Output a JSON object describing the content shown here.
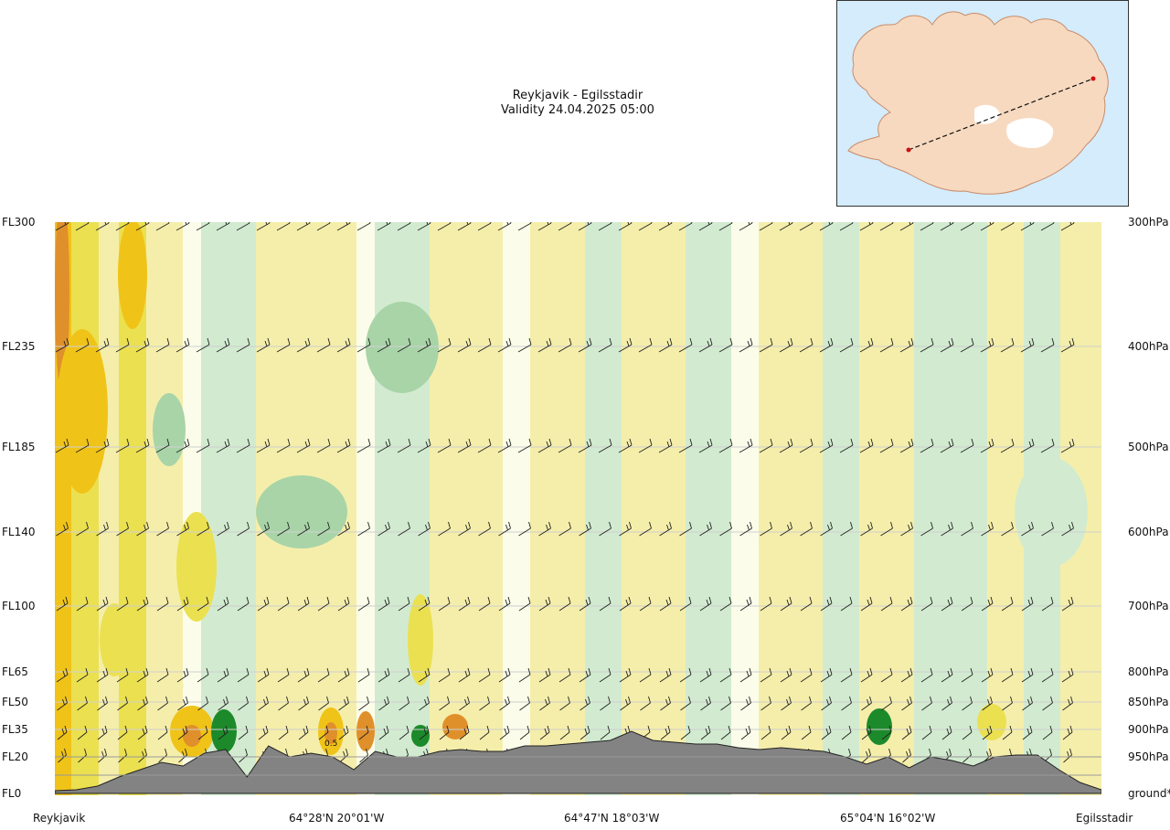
{
  "title": {
    "route": "Reykjavik - Egilsstadir",
    "validity": "Validity 24.04.2025 05:00"
  },
  "left_axis_labels": [
    "FL300",
    "FL235",
    "FL185",
    "FL140",
    "FL100",
    "FL65",
    "FL50",
    "FL35",
    "FL20",
    "FL0"
  ],
  "right_axis_labels": [
    "300hPa",
    "400hPa",
    "500hPa",
    "600hPa",
    "700hPa",
    "800hPa",
    "850hPa",
    "900hPa",
    "950hPa",
    "ground*"
  ],
  "waypoints": [
    "Reykjavik",
    "64°28'N 20°01'W",
    "64°47'N 18°03'W",
    "65°04'N 16°02'W",
    "Egilsstadir"
  ],
  "contour_labels": [
    "0.5"
  ],
  "colors": {
    "terrain": "#838383",
    "band_dark_green": "#1c8a2a",
    "band_mid_green": "#a8d4a8",
    "band_light_green": "#d2ebd0",
    "band_pale": "#fbfdea",
    "band_light_yellow": "#f5eeaa",
    "band_yellow": "#ebe050",
    "band_gold": "#f0c318",
    "band_orange": "#e0902b",
    "inset_sea": "#d4ecfb",
    "inset_land": "#f7d9c0"
  },
  "chart_data": {
    "type": "heatmap",
    "title": "Reykjavik - Egilsstadir",
    "subtitle": "Validity 24.04.2025 05:00",
    "x": [
      "Reykjavik",
      "64°28'N 20°01'W",
      "64°47'N 18°03'W",
      "65°04'N 16°02'W",
      "Egilsstadir"
    ],
    "y_flight_levels": [
      "FL0",
      "FL20",
      "FL35",
      "FL50",
      "FL65",
      "FL100",
      "FL140",
      "FL185",
      "FL235",
      "FL300"
    ],
    "y_pressure_levels": [
      "ground*",
      "950hPa",
      "900hPa",
      "850hPa",
      "800hPa",
      "700hPa",
      "600hPa",
      "500hPa",
      "400hPa",
      "300hPa"
    ],
    "terrain_profile_ft": [
      150,
      200,
      400,
      900,
      1300,
      1700,
      1500,
      2200,
      2400,
      900,
      2600,
      2000,
      2200,
      2000,
      1300,
      2300,
      2000,
      2000,
      2300,
      2400,
      2300,
      2300,
      2600,
      2600,
      2700,
      2800,
      2900,
      3400,
      2900,
      2800,
      2700,
      2700,
      2500,
      2400,
      2500,
      2400,
      2300,
      2000,
      1600,
      2000,
      1400,
      2000,
      1800,
      1500,
      2000,
      2100,
      2100,
      1300,
      600,
      200
    ],
    "contour_annotations": [
      "0.5"
    ],
    "grid": true,
    "legend": "none",
    "inset_map": "Iceland route Reykjavik to Egilsstadir"
  }
}
